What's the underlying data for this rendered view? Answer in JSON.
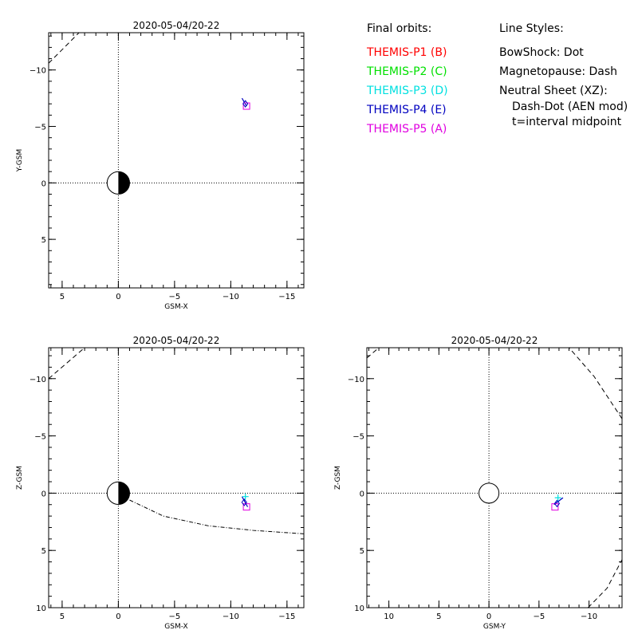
{
  "legend": {
    "orbits_title": "Final orbits:",
    "probes": [
      {
        "label": "THEMIS-P1 (B)",
        "color": "#ff0000"
      },
      {
        "label": "THEMIS-P2 (C)",
        "color": "#00e000"
      },
      {
        "label": "THEMIS-P3 (D)",
        "color": "#00e0e0"
      },
      {
        "label": "THEMIS-P4 (E)",
        "color": "#0000c0"
      },
      {
        "label": "THEMIS-P5 (A)",
        "color": "#e000e0"
      }
    ],
    "styles_title": "Line Styles:",
    "styles": [
      "BowShock: Dot",
      "Magnetopause: Dash",
      "Neutral Sheet (XZ):",
      "Dash-Dot (AEN mod)",
      "t=interval midpoint"
    ]
  },
  "chart_data": [
    {
      "type": "scatter",
      "title": "2020-05-04/20-22",
      "xlabel": "GSM-X",
      "ylabel": "Y-GSM",
      "xlim": [
        6.2,
        -16.5
      ],
      "ylim": [
        -13.3,
        9.3
      ],
      "xticks": [
        5,
        0,
        -5,
        -10,
        -15
      ],
      "yticks": [
        -10,
        -5,
        0,
        5
      ],
      "magnetopause": [
        [
          6.2,
          -10.6
        ],
        [
          3.5,
          -13.3
        ]
      ],
      "neutral_sheet": [],
      "probe_track": [
        [
          -11.0,
          -7.5
        ],
        [
          -11.4,
          -6.8
        ]
      ],
      "probes": [
        {
          "name": "THEMIS-P5 (A)",
          "x": -11.4,
          "y": -6.8,
          "marker": "square"
        },
        {
          "name": "THEMIS-P4 (E)",
          "x": -11.3,
          "y": -7.0,
          "marker": "diamond"
        }
      ]
    },
    {
      "type": "scatter",
      "title": "2020-05-04/20-22",
      "xlabel": "GSM-X",
      "ylabel": "Z-GSM",
      "xlim": [
        6.2,
        -16.5
      ],
      "ylim": [
        -12.7,
        10.0
      ],
      "xticks": [
        5,
        0,
        -5,
        -10,
        -15
      ],
      "yticks": [
        10,
        5,
        0,
        -5,
        -10
      ],
      "magnetopause": [
        [
          6.2,
          -10.0
        ],
        [
          3.0,
          -12.7
        ]
      ],
      "neutral_sheet": [
        [
          -1.0,
          0.6
        ],
        [
          -4.0,
          2.0
        ],
        [
          -8.0,
          2.85
        ],
        [
          -12.0,
          3.25
        ],
        [
          -16.5,
          3.55
        ]
      ],
      "probe_track": [
        [
          -11.0,
          0.3
        ],
        [
          -11.5,
          1.2
        ]
      ],
      "probes": [
        {
          "name": "THEMIS-P5 (A)",
          "x": -11.4,
          "y": 1.2,
          "marker": "square"
        },
        {
          "name": "THEMIS-P4 (E)",
          "x": -11.2,
          "y": 0.8,
          "marker": "diamond"
        },
        {
          "name": "THEMIS-P3 (D)",
          "x": -11.3,
          "y": 0.3,
          "marker": "plus"
        }
      ]
    },
    {
      "type": "scatter",
      "title": "2020-05-04/20-22",
      "xlabel": "GSM-Y",
      "ylabel": "Z-GSM",
      "xlim": [
        12.2,
        -13.3
      ],
      "ylim": [
        -12.7,
        10.0
      ],
      "xticks": [
        10,
        5,
        0,
        -5,
        -10
      ],
      "yticks": [
        10,
        5,
        0,
        -5,
        -10
      ],
      "magnetopause": [
        [
          -9.9,
          10.0
        ],
        [
          -11.8,
          8.3
        ],
        [
          -13.3,
          5.8
        ]
      ],
      "magnetopause2": [
        [
          -13.3,
          -6.5
        ],
        [
          -10.5,
          -10.2
        ],
        [
          -8.0,
          -12.7
        ]
      ],
      "magnetopause3": [
        [
          12.2,
          -11.8
        ],
        [
          11.0,
          -12.7
        ]
      ],
      "neutral_sheet": [],
      "probe_track": [
        [
          -6.5,
          1.0
        ],
        [
          -7.4,
          0.4
        ]
      ],
      "probes": [
        {
          "name": "THEMIS-P5 (A)",
          "x": -6.6,
          "y": 1.2,
          "marker": "square"
        },
        {
          "name": "THEMIS-P4 (E)",
          "x": -6.8,
          "y": 0.9,
          "marker": "diamond"
        },
        {
          "name": "THEMIS-P3 (D)",
          "x": -6.9,
          "y": 0.4,
          "marker": "plus"
        }
      ]
    }
  ]
}
